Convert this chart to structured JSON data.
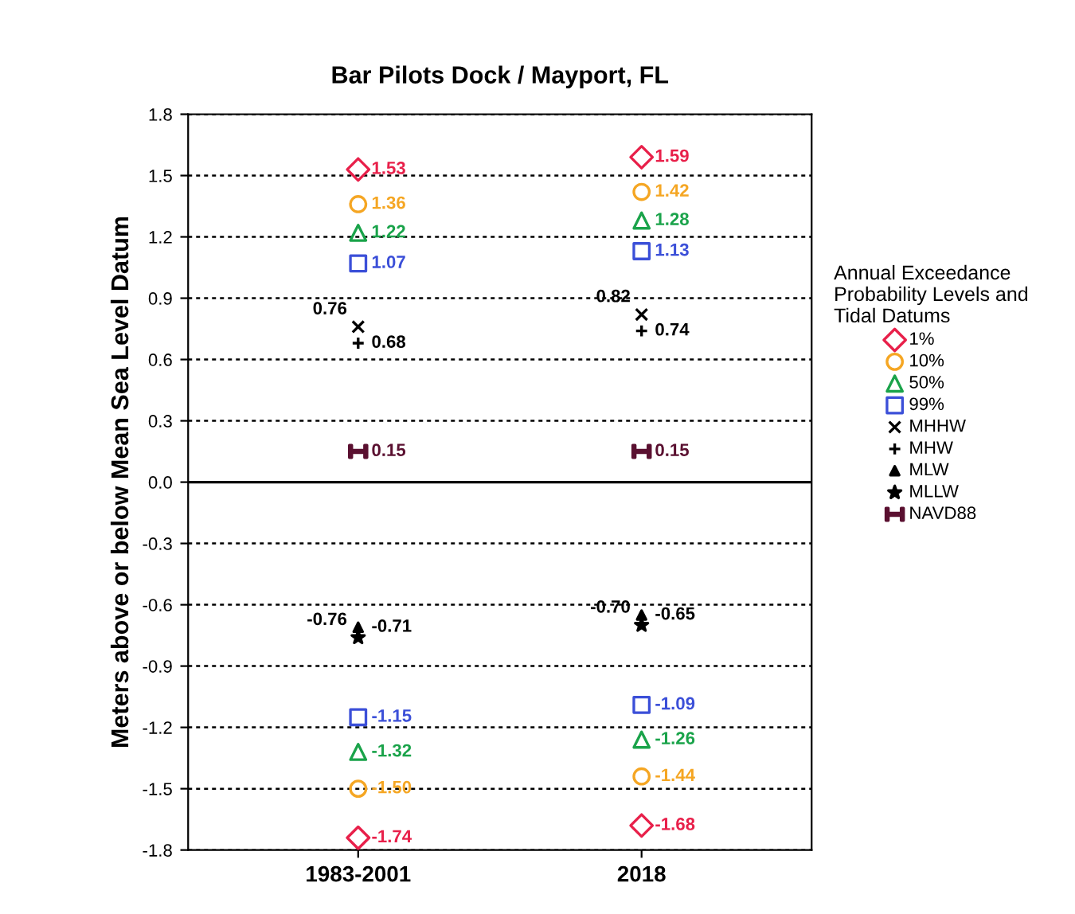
{
  "chart_data": {
    "type": "scatter",
    "title": "Bar Pilots Dock / Mayport, FL",
    "ylabel": "Meters above or below Mean Sea Level Datum",
    "legend_title": "Annual Exceedance\nProbability Levels and\nTidal Datums",
    "categories": [
      "1983-2001",
      "2018"
    ],
    "series": [
      {
        "name": "1%",
        "color": "#e8204a",
        "marker": "diamond",
        "values": [
          1.53,
          1.59
        ],
        "value_labels": [
          "1.53",
          "1.59"
        ]
      },
      {
        "name": "10%",
        "color": "#f5a623",
        "marker": "circle",
        "values": [
          1.36,
          1.42
        ],
        "value_labels": [
          "1.36",
          "1.42"
        ]
      },
      {
        "name": "50%",
        "color": "#1aa34a",
        "marker": "triangle",
        "values": [
          1.22,
          1.28
        ],
        "value_labels": [
          "1.22",
          "1.28"
        ]
      },
      {
        "name": "99%",
        "color": "#3b4fd8",
        "marker": "square",
        "values": [
          1.07,
          1.13
        ],
        "value_labels": [
          "1.07",
          "1.13"
        ]
      },
      {
        "name": "MHHW",
        "color": "#000000",
        "marker": "cross",
        "values": [
          0.76,
          0.82
        ],
        "value_labels": [
          "0.76",
          "0.82"
        ]
      },
      {
        "name": "MHW",
        "color": "#000000",
        "marker": "cross",
        "values": [
          0.68,
          0.74
        ],
        "value_labels": [
          "0.68",
          "0.74"
        ]
      },
      {
        "name": "MLW",
        "color": "#000000",
        "marker": "triangle",
        "values": [
          -0.71,
          -0.65
        ],
        "value_labels": [
          "-0.71",
          "-0.65"
        ]
      },
      {
        "name": "MLLW",
        "color": "#000000",
        "marker": "star",
        "values": [
          -0.76,
          -0.7
        ],
        "value_labels": [
          "-0.76",
          "-0.70"
        ]
      },
      {
        "name": "NAVD88",
        "color": "#5a1030",
        "values": [
          0.15,
          0.15
        ],
        "value_labels": [
          "0.15",
          "0.15"
        ]
      },
      {
        "color": "#3b4fd8",
        "marker": "square",
        "values": [
          -1.15,
          -1.09
        ],
        "value_labels": [
          "-1.15",
          "-1.09"
        ]
      },
      {
        "color": "#1aa34a",
        "marker": "triangle",
        "values": [
          -1.32,
          -1.26
        ],
        "value_labels": [
          "-1.32",
          "-1.26"
        ]
      },
      {
        "color": "#f5a623",
        "marker": "circle",
        "values": [
          -1.5,
          -1.44
        ],
        "value_labels": [
          "-1.50",
          "-1.44"
        ]
      },
      {
        "color": "#e8204a",
        "marker": "diamond",
        "values": [
          -1.74,
          -1.68
        ],
        "value_labels": [
          "-1.74",
          "-1.68"
        ]
      }
    ],
    "ylim": [
      -1.8,
      1.8
    ],
    "yticks": [
      -1.8,
      -1.5,
      -1.2,
      -0.9,
      -0.6,
      -0.3,
      {
        "value": 0,
        "label": "0.0"
      },
      0.3,
      0.6,
      0.9,
      1.2,
      1.5,
      1.8
    ],
    "grid": "y",
    "legend": "right",
    "ref_lines": [
      {
        "axis": "y",
        "value": 0,
        "color": "#000000",
        "line_style": "solid"
      }
    ]
  }
}
